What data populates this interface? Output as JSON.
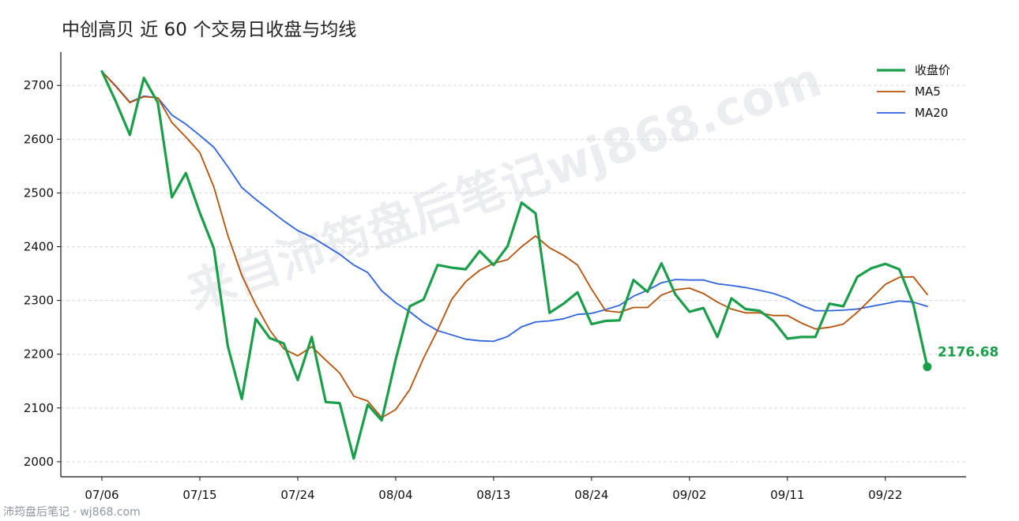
{
  "title": "中创高贝 近 60 个交易日收盘与均线",
  "watermark": "来自沛筠盘后笔记wj868.com",
  "footer": "沛筠盘后笔记 · wj868.com",
  "colors": {
    "close": "#1a9e4a",
    "ma5": "#b5520b",
    "ma20": "#2f63dc",
    "grid": "#d9d9d9",
    "axis": "#111111"
  },
  "chart_data": {
    "type": "line",
    "title": "中创高贝 近 60 个交易日收盘与均线",
    "xlabel": "",
    "ylabel": "",
    "ylim": [
      1972,
      2762
    ],
    "yticks": [
      2000,
      2100,
      2200,
      2300,
      2400,
      2500,
      2600,
      2700
    ],
    "grid": "horizontal dashed",
    "legend_position": "top-right",
    "x_dates": [
      "07/06",
      "07/07",
      "07/08",
      "07/09",
      "07/10",
      "07/11",
      "07/14",
      "07/15",
      "07/16",
      "07/17",
      "07/18",
      "07/21",
      "07/22",
      "07/23",
      "07/24",
      "07/25",
      "07/28",
      "07/29",
      "07/30",
      "07/31",
      "08/01",
      "08/04",
      "08/05",
      "08/06",
      "08/07",
      "08/08",
      "08/11",
      "08/12",
      "08/13",
      "08/14",
      "08/15",
      "08/18",
      "08/19",
      "08/20",
      "08/21",
      "08/22",
      "08/25",
      "08/26",
      "08/27",
      "08/28",
      "08/29",
      "09/01",
      "09/02",
      "09/03",
      "09/04",
      "09/05",
      "09/08",
      "09/09",
      "09/10",
      "09/11",
      "09/12",
      "09/15",
      "09/16",
      "09/17",
      "09/18",
      "09/19",
      "09/22",
      "09/23",
      "09/24",
      "09/25"
    ],
    "xticks": [
      "07/06",
      "07/15",
      "07/24",
      "08/04",
      "08/13",
      "08/24",
      "09/02",
      "09/11",
      "09/22"
    ],
    "xtick_index": [
      0,
      7,
      14,
      21,
      28,
      35,
      42,
      49,
      56
    ],
    "series": [
      {
        "name": "收盘价",
        "color": "#1a9e4a",
        "width": 3.2,
        "values": [
          2726,
          2670,
          2608,
          2714,
          2668,
          2492,
          2537,
          2463,
          2397,
          2215,
          2117,
          2266,
          2230,
          2220,
          2152,
          2232,
          2111,
          2109,
          2006,
          2106,
          2077,
          2190,
          2289,
          2302,
          2366,
          2361,
          2358,
          2392,
          2366,
          2401,
          2482,
          2462,
          2277,
          2294,
          2315,
          2256,
          2262,
          2263,
          2338,
          2316,
          2369,
          2311,
          2279,
          2286,
          2232,
          2304,
          2284,
          2281,
          2262,
          2229,
          2232,
          2232,
          2294,
          2289,
          2344,
          2360,
          2368,
          2358,
          2293,
          2176.68
        ]
      },
      {
        "name": "MA5",
        "color": "#b5520b",
        "width": 1.8,
        "values": [
          2726,
          2698,
          2668,
          2679,
          2677,
          2631,
          2604,
          2575,
          2511,
          2421,
          2347,
          2292,
          2245,
          2210,
          2197,
          2214,
          2189,
          2165,
          2122,
          2113,
          2082,
          2097,
          2134,
          2193,
          2245,
          2302,
          2335,
          2356,
          2369,
          2376,
          2400,
          2420,
          2398,
          2384,
          2366,
          2321,
          2281,
          2278,
          2287,
          2287,
          2310,
          2320,
          2323,
          2313,
          2297,
          2284,
          2277,
          2277,
          2272,
          2272,
          2258,
          2247,
          2250,
          2256,
          2278,
          2304,
          2330,
          2343,
          2344,
          2311
        ]
      },
      {
        "name": "MA20",
        "color": "#2f63dc",
        "width": 1.8,
        "values": [
          2726,
          2699,
          2669,
          2680,
          2677,
          2645,
          2628,
          2607,
          2585,
          2549,
          2510,
          2488,
          2468,
          2448,
          2430,
          2418,
          2402,
          2386,
          2366,
          2352,
          2318,
          2296,
          2279,
          2259,
          2244,
          2236,
          2228,
          2225,
          2224,
          2233,
          2251,
          2260,
          2262,
          2266,
          2274,
          2276,
          2283,
          2291,
          2308,
          2319,
          2333,
          2339,
          2338,
          2338,
          2331,
          2328,
          2324,
          2319,
          2313,
          2304,
          2291,
          2281,
          2281,
          2282,
          2284,
          2289,
          2294,
          2299,
          2297,
          2289
        ]
      }
    ],
    "end_label": "2176.68"
  }
}
